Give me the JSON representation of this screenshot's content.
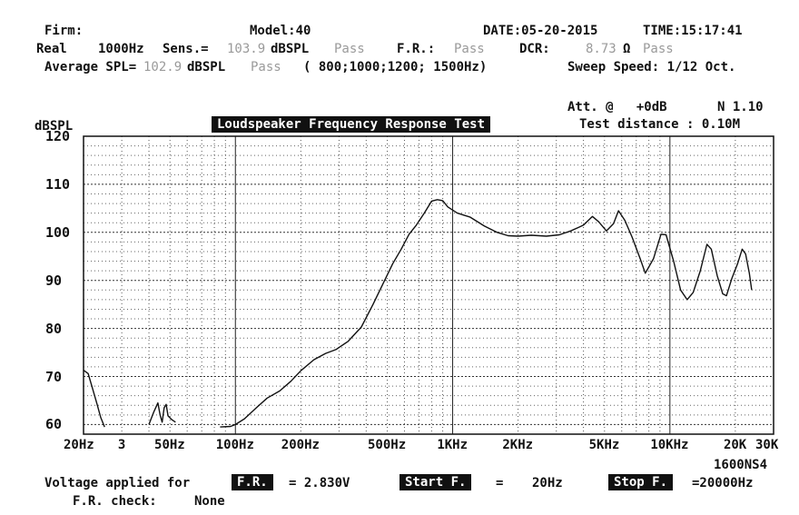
{
  "header": {
    "firm_label": "Firm:",
    "model": "Model:40",
    "date": "DATE:05-20-2015",
    "time": "TIME:15:17:41",
    "line2": {
      "real_label": "Real",
      "freq": "1000Hz",
      "sens_label": "Sens.=",
      "sens_value": "103.9",
      "sens_unit": "dBSPL",
      "sens_status": "Pass",
      "fr_label": "F.R.:",
      "fr_status": "Pass",
      "dcr_label": "DCR:",
      "dcr_value": "8.73",
      "dcr_unit": "Ω",
      "dcr_status": "Pass"
    },
    "line3": {
      "avg_label": "Average SPL=",
      "avg_value": "102.9",
      "avg_unit": "dBSPL",
      "avg_status": "Pass",
      "avg_freqs": "( 800;1000;1200; 1500Hz)",
      "sweep": "Sweep Speed: 1/12 Oct."
    },
    "att": "Att. @   +0dB",
    "n": "N 1.10",
    "test_distance": "Test distance : 0.10M"
  },
  "chart_data": {
    "type": "line",
    "title": "Loudspeaker Frequency Response Test",
    "ylabel": "dBSPL",
    "xlabel": "",
    "x_scale": "log",
    "xlim": [
      20,
      30000
    ],
    "ylim": [
      58,
      120
    ],
    "y_ticks": [
      120,
      110,
      100,
      90,
      80,
      70,
      60
    ],
    "x_ticks": [
      {
        "f": 20,
        "label": "20Hz"
      },
      {
        "f": 30,
        "label": "3"
      },
      {
        "f": 50,
        "label": "50Hz"
      },
      {
        "f": 100,
        "label": "100Hz"
      },
      {
        "f": 200,
        "label": "200Hz"
      },
      {
        "f": 500,
        "label": "500Hz"
      },
      {
        "f": 1000,
        "label": "1KHz"
      },
      {
        "f": 2000,
        "label": "2KHz"
      },
      {
        "f": 5000,
        "label": "5KHz"
      },
      {
        "f": 10000,
        "label": "10KHz"
      },
      {
        "f": 20000,
        "label": "20K"
      },
      {
        "f": 30000,
        "label": "30K"
      }
    ],
    "grid": true,
    "series": [
      {
        "points": [
          [
            20,
            71.3
          ],
          [
            21,
            70.6
          ],
          [
            22,
            67.5
          ],
          [
            23,
            64.5
          ],
          [
            24,
            61.5
          ],
          [
            25,
            59.5
          ],
          [
            40,
            60
          ],
          [
            42,
            62.5
          ],
          [
            44,
            64.5
          ],
          [
            45,
            62
          ],
          [
            46,
            60.5
          ],
          [
            47,
            63.5
          ],
          [
            48,
            64.2
          ],
          [
            49,
            61.8
          ],
          [
            51,
            61
          ],
          [
            53,
            60.5
          ],
          [
            85,
            59.5
          ],
          [
            95,
            59.6
          ],
          [
            100,
            60
          ],
          [
            110,
            61.2
          ],
          [
            125,
            63.5
          ],
          [
            140,
            65.5
          ],
          [
            160,
            67
          ],
          [
            180,
            69
          ],
          [
            200,
            71.2
          ],
          [
            230,
            73.5
          ],
          [
            260,
            74.8
          ],
          [
            290,
            75.6
          ],
          [
            330,
            77.3
          ],
          [
            380,
            80.3
          ],
          [
            430,
            85
          ],
          [
            480,
            89.5
          ],
          [
            530,
            93.5
          ],
          [
            580,
            96.5
          ],
          [
            630,
            99.6
          ],
          [
            680,
            101.5
          ],
          [
            740,
            104
          ],
          [
            800,
            106.5
          ],
          [
            850,
            106.8
          ],
          [
            900,
            106.6
          ],
          [
            950,
            105.3
          ],
          [
            1050,
            104
          ],
          [
            1200,
            103.2
          ],
          [
            1400,
            101.3
          ],
          [
            1600,
            100
          ],
          [
            1800,
            99.3
          ],
          [
            2000,
            99.2
          ],
          [
            2300,
            99.4
          ],
          [
            2700,
            99.2
          ],
          [
            3100,
            99.5
          ],
          [
            3500,
            100.3
          ],
          [
            4000,
            101.5
          ],
          [
            4400,
            103.3
          ],
          [
            4700,
            102.2
          ],
          [
            5100,
            100.3
          ],
          [
            5500,
            101.8
          ],
          [
            5800,
            104.5
          ],
          [
            6200,
            102.5
          ],
          [
            6700,
            99
          ],
          [
            7300,
            94.5
          ],
          [
            7700,
            91.5
          ],
          [
            8400,
            94.5
          ],
          [
            9100,
            99.6
          ],
          [
            9600,
            99.5
          ],
          [
            10400,
            94
          ],
          [
            11200,
            88
          ],
          [
            12000,
            86
          ],
          [
            12800,
            87.5
          ],
          [
            13800,
            92
          ],
          [
            14800,
            97.5
          ],
          [
            15500,
            96.5
          ],
          [
            16500,
            91
          ],
          [
            17500,
            87.2
          ],
          [
            18200,
            86.8
          ],
          [
            19300,
            90.5
          ],
          [
            20500,
            93.5
          ],
          [
            21500,
            96.5
          ],
          [
            22300,
            95.5
          ],
          [
            23200,
            91.5
          ],
          [
            23800,
            88
          ]
        ]
      }
    ]
  },
  "footer": {
    "voltage_label": "Voltage applied for",
    "fr_box": "F.R.",
    "voltage_value": "= 2.830V",
    "start_box": "Start F.",
    "start_eq": "=",
    "start_value": "20Hz",
    "stop_box": "Stop F.",
    "stop_value": "=20000Hz",
    "model_code": "1600NS4",
    "fr_check_label": "F.R. check:",
    "fr_check_value": "None"
  }
}
